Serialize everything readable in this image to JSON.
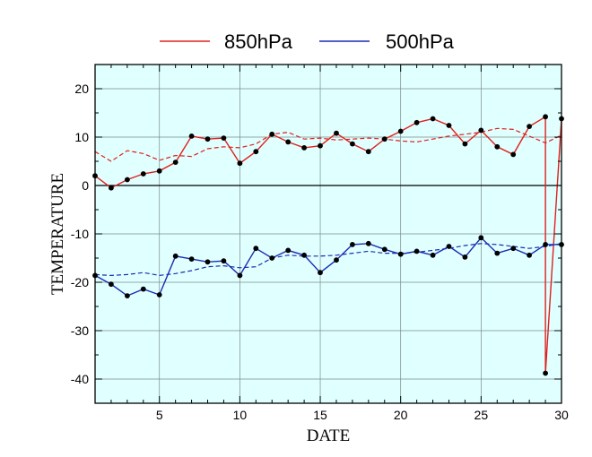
{
  "chart_data": {
    "type": "line",
    "xlabel": "DATE",
    "ylabel": "TEMPERATURE",
    "xlim": [
      1,
      30
    ],
    "ylim": [
      -45,
      25
    ],
    "x_ticks": [
      5,
      10,
      15,
      20,
      25,
      30
    ],
    "y_ticks": [
      20,
      10,
      0,
      -10,
      -20,
      -30,
      -40
    ],
    "grid": true,
    "background": "#e0ffff",
    "legend_position": "top",
    "x": [
      1,
      2,
      3,
      4,
      5,
      6,
      7,
      8,
      9,
      10,
      11,
      12,
      13,
      14,
      15,
      16,
      17,
      18,
      19,
      20,
      21,
      22,
      23,
      24,
      25,
      26,
      27,
      28,
      29,
      30
    ],
    "series": [
      {
        "name": "850hPa",
        "color": "#e0201c",
        "values": [
          2.0,
          -0.5,
          1.2,
          2.4,
          3.0,
          4.8,
          10.2,
          9.6,
          9.8,
          4.6,
          7.0,
          10.6,
          9.0,
          7.8,
          8.2,
          10.8,
          8.6,
          7.0,
          9.6,
          11.2,
          13.0,
          13.8,
          12.4,
          8.6,
          11.4,
          8.0,
          6.4,
          12.2,
          14.2,
          13.8
        ],
        "extra_point": {
          "x": 29,
          "value": -38.8
        },
        "mean_values": [
          7.0,
          5.0,
          7.2,
          6.6,
          5.2,
          6.2,
          6.0,
          7.6,
          8.0,
          7.8,
          8.6,
          10.6,
          11.0,
          9.6,
          9.8,
          9.4,
          9.6,
          9.8,
          9.6,
          9.2,
          9.0,
          9.6,
          10.2,
          10.6,
          11.0,
          11.8,
          11.6,
          10.2,
          8.8,
          10.4
        ]
      },
      {
        "name": "500hPa",
        "color": "#1c2cb0",
        "values": [
          -18.6,
          -20.4,
          -22.8,
          -21.4,
          -22.6,
          -14.6,
          -15.2,
          -15.8,
          -15.6,
          -18.6,
          -13.0,
          -15.0,
          -13.4,
          -14.4,
          -18.0,
          -15.4,
          -12.2,
          -12.0,
          -13.2,
          -14.2,
          -13.6,
          -14.4,
          -12.6,
          -14.8,
          -10.8,
          -14.0,
          -13.0,
          -14.4,
          -12.2,
          -12.2
        ],
        "mean_values": [
          -18.4,
          -18.6,
          -18.4,
          -18.0,
          -18.6,
          -18.2,
          -17.6,
          -16.8,
          -16.6,
          -17.0,
          -16.8,
          -15.0,
          -14.4,
          -14.6,
          -14.6,
          -14.4,
          -14.0,
          -13.6,
          -14.0,
          -14.0,
          -13.8,
          -13.4,
          -13.0,
          -12.4,
          -12.0,
          -12.2,
          -12.6,
          -13.0,
          -12.6,
          -12.0
        ]
      }
    ]
  }
}
